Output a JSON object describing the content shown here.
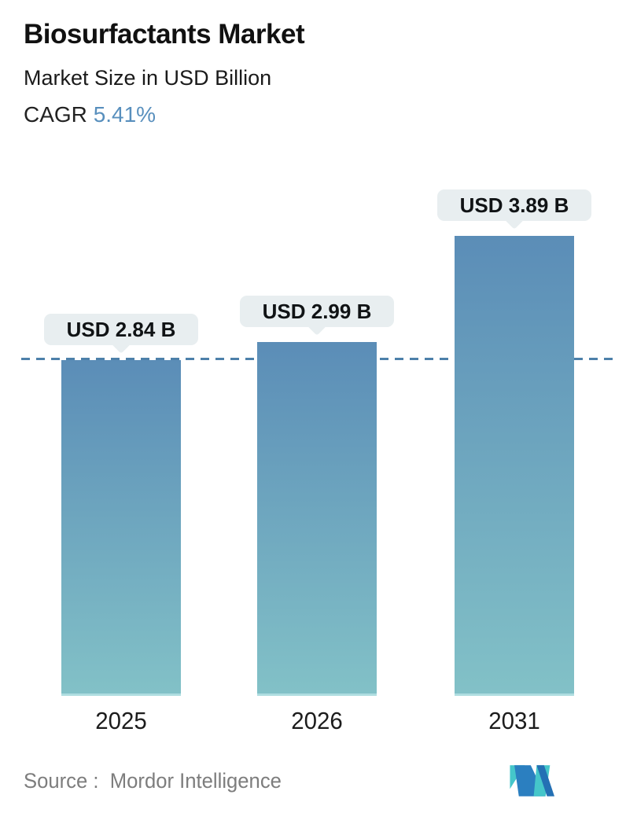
{
  "header": {
    "title": "Biosurfactants Market",
    "subtitle": "Market Size in USD Billion",
    "cagr_label": "CAGR",
    "cagr_value": "5.41%"
  },
  "chart_data": {
    "type": "bar",
    "title": "Biosurfactants Market",
    "subtitle": "Market Size in USD Billion",
    "cagr": "5.41%",
    "categories": [
      "2025",
      "2026",
      "2031"
    ],
    "values": [
      2.84,
      2.99,
      3.89
    ],
    "value_labels": [
      "USD 2.84 B",
      "USD 2.99 B",
      "USD 3.89 B"
    ],
    "unit": "USD Billion",
    "ylim": [
      0,
      4.2
    ],
    "reference_line_value": 2.84,
    "grid": false,
    "legend": false
  },
  "footer": {
    "source": "Source :  Mordor Intelligence"
  },
  "colors": {
    "accent_blue": "#588fbd",
    "bar_top": "#5b8db7",
    "bar_bottom": "#82c1c7",
    "badge_bg": "#e8eef0",
    "dashed_line": "#4d80aa",
    "source_text": "#7d7d7d",
    "logo_blue": "#2b7fc0",
    "logo_blue_dark": "#2470b4",
    "logo_teal": "#45c6ca"
  }
}
